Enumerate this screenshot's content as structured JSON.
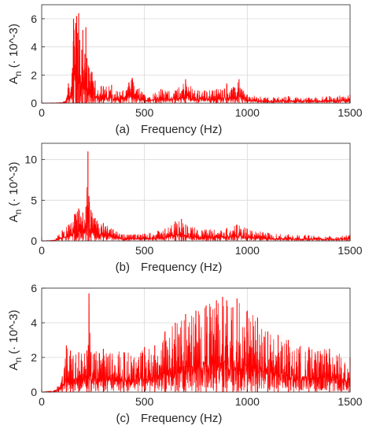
{
  "figure": {
    "colors": {
      "series": "#ff0000",
      "grid": "#d9d9d9",
      "axis": "#262626",
      "background": "#ffffff"
    }
  },
  "chart_data": [
    {
      "type": "line",
      "panel_label": "(a)",
      "xlabel": "Frequency (Hz)",
      "ylabel": "A",
      "ylabel_subscript": "n",
      "ylabel_unit": "(· 10^-3)",
      "xlim": [
        0,
        1500
      ],
      "ylim": [
        0,
        7
      ],
      "xticks": [
        0,
        500,
        1000,
        1500
      ],
      "yticks": [
        0,
        2,
        4,
        6
      ],
      "grid": true,
      "series": [
        {
          "x": [
            0,
            100,
            120,
            130,
            150,
            155,
            165,
            170,
            175,
            180,
            185,
            195,
            200,
            210,
            215,
            220,
            230,
            245,
            260,
            300,
            340,
            380,
            440,
            500,
            580,
            650,
            700,
            760,
            850,
            900,
            940,
            960,
            1000,
            1100,
            1200,
            1300,
            1400,
            1500
          ],
          "values": [
            0,
            0.05,
            0.3,
            1.4,
            2.5,
            6.0,
            5.7,
            6.2,
            5.0,
            6.4,
            4.5,
            3.8,
            5.2,
            3.5,
            5.4,
            3.2,
            2.5,
            2.2,
            1.6,
            1.2,
            1.3,
            0.8,
            1.8,
            0.6,
            1.0,
            0.9,
            1.7,
            0.9,
            1.0,
            1.4,
            1.1,
            1.7,
            0.6,
            0.4,
            0.5,
            0.4,
            0.5,
            0.6
          ]
        }
      ]
    },
    {
      "type": "line",
      "panel_label": "(b)",
      "xlabel": "Frequency (Hz)",
      "ylabel": "A",
      "ylabel_subscript": "n",
      "ylabel_unit": "(· 10^-3)",
      "xlim": [
        0,
        1500
      ],
      "ylim": [
        0,
        12
      ],
      "xticks": [
        0,
        500,
        1000,
        1500
      ],
      "yticks": [
        0,
        5,
        10
      ],
      "grid": true,
      "series": [
        {
          "x": [
            0,
            60,
            100,
            130,
            160,
            180,
            200,
            215,
            225,
            230,
            240,
            260,
            300,
            400,
            500,
            600,
            650,
            680,
            700,
            800,
            900,
            950,
            1000,
            1100,
            1200,
            1300,
            1400,
            1500
          ],
          "values": [
            0,
            0.1,
            1.3,
            2.0,
            3.3,
            4.0,
            3.5,
            4.2,
            11.0,
            5.5,
            3.8,
            2.8,
            2.2,
            0.8,
            0.9,
            1.5,
            2.4,
            2.7,
            2.0,
            1.4,
            1.6,
            2.0,
            1.5,
            1.0,
            0.8,
            0.7,
            0.6,
            0.8
          ]
        }
      ]
    },
    {
      "type": "line",
      "panel_label": "(c)",
      "xlabel": "Frequency (Hz)",
      "ylabel": "A",
      "ylabel_subscript": "n",
      "ylabel_unit": "(· 10^-3)",
      "xlim": [
        0,
        1500
      ],
      "ylim": [
        0,
        6
      ],
      "xticks": [
        0,
        500,
        1000,
        1500
      ],
      "yticks": [
        0,
        2,
        4,
        6
      ],
      "grid": true,
      "series": [
        {
          "x": [
            0,
            60,
            100,
            120,
            140,
            180,
            220,
            230,
            240,
            300,
            400,
            500,
            550,
            600,
            650,
            700,
            750,
            800,
            850,
            880,
            900,
            930,
            950,
            1000,
            1050,
            1100,
            1150,
            1200,
            1300,
            1400,
            1500
          ],
          "values": [
            0,
            0.1,
            0.9,
            2.7,
            2.4,
            2.3,
            2.4,
            5.7,
            2.3,
            2.5,
            2.3,
            2.6,
            2.7,
            3.5,
            4.0,
            4.5,
            4.7,
            5.0,
            5.3,
            5.5,
            5.3,
            4.9,
            5.4,
            4.7,
            4.3,
            3.5,
            3.3,
            3.0,
            2.6,
            2.5,
            2.0
          ]
        }
      ]
    }
  ]
}
